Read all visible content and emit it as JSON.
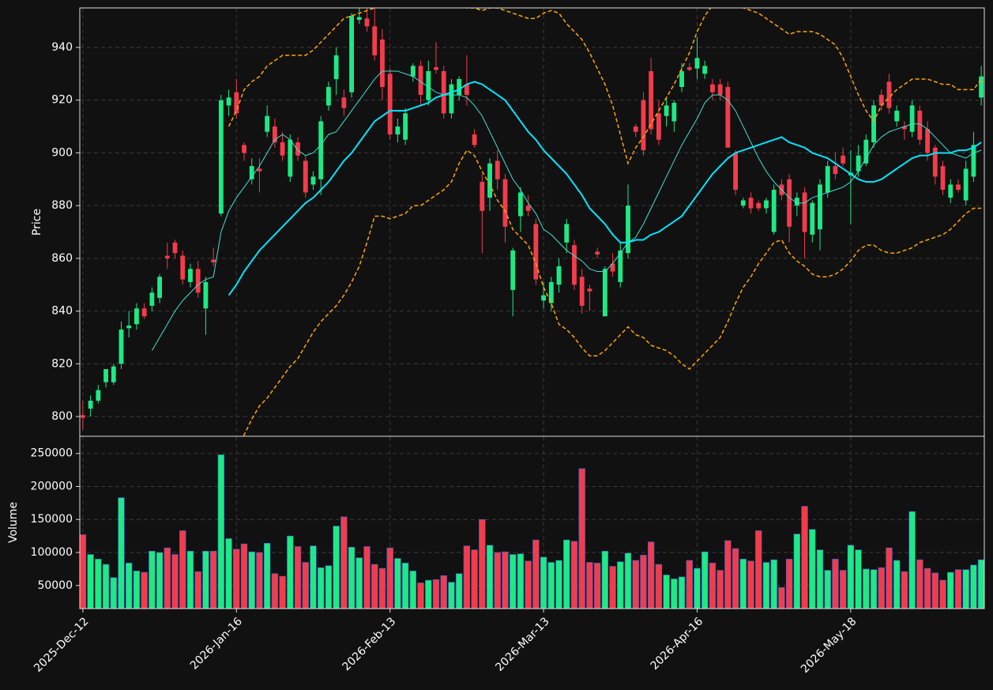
{
  "chart_data": {
    "type": "candlestick",
    "ylabel": "Price",
    "volume_ylabel": "Volume",
    "categories": [
      "2025-Dec-12",
      null,
      null,
      null,
      null,
      null,
      null,
      null,
      null,
      null,
      null,
      null,
      null,
      null,
      null,
      null,
      null,
      null,
      null,
      null,
      "2026-Jan-16",
      null,
      null,
      null,
      null,
      null,
      null,
      null,
      null,
      null,
      null,
      null,
      null,
      null,
      null,
      null,
      null,
      null,
      null,
      null,
      "2026-Feb-13",
      null,
      null,
      null,
      null,
      null,
      null,
      null,
      null,
      null,
      null,
      null,
      null,
      null,
      null,
      null,
      null,
      null,
      null,
      null,
      "2026-Mar-13",
      null,
      null,
      null,
      null,
      null,
      null,
      null,
      null,
      null,
      null,
      null,
      null,
      null,
      null,
      null,
      null,
      null,
      null,
      null,
      "2026-Apr-16",
      null,
      null,
      null,
      null,
      null,
      null,
      null,
      null,
      null,
      null,
      null,
      null,
      null,
      null,
      null,
      null,
      null,
      null,
      null,
      "2026-May-18",
      null,
      null,
      null,
      null,
      null,
      null,
      null,
      null,
      null,
      null,
      null,
      null,
      null,
      null,
      null,
      null,
      null
    ],
    "open": [
      800.5,
      803,
      806,
      813,
      813,
      820,
      833.5,
      835,
      841,
      842,
      845,
      861,
      866,
      861,
      851,
      856,
      841,
      859.5,
      877,
      918,
      923,
      903,
      890,
      894,
      908,
      910,
      904,
      891,
      904,
      897,
      888,
      890,
      918,
      928,
      921,
      923,
      950.5,
      951,
      948,
      943,
      930,
      907,
      905,
      929,
      933,
      920,
      932.5,
      931,
      915,
      922,
      926,
      907,
      889,
      883,
      897,
      890,
      848,
      876,
      880,
      873,
      844,
      843,
      850,
      866,
      865,
      853,
      848.5,
      862.5,
      838,
      858,
      851,
      862,
      910,
      920,
      931,
      915,
      914,
      912,
      925,
      932.5,
      932,
      930,
      926,
      926,
      925,
      900,
      880,
      883,
      881,
      879,
      870,
      888,
      890,
      880,
      885,
      869,
      871,
      885,
      895,
      899,
      891.5,
      893,
      896,
      904,
      922,
      927,
      912,
      910,
      908,
      916,
      909,
      902,
      895,
      883,
      888,
      882,
      891,
      921
    ],
    "high": [
      806,
      808,
      812,
      818,
      820,
      836,
      840,
      843,
      843,
      849,
      854,
      866,
      867,
      863,
      858,
      859,
      853,
      864,
      922,
      924,
      928,
      904,
      898,
      898,
      918,
      913,
      908,
      907,
      906,
      899,
      893,
      914,
      927,
      940,
      924,
      953,
      956,
      956,
      955,
      947,
      932,
      913,
      917,
      934,
      935,
      935,
      942,
      933,
      928,
      929,
      937,
      909,
      892,
      898,
      901,
      892,
      864,
      887,
      884,
      875,
      851,
      853,
      860,
      875,
      867,
      856,
      850,
      864,
      857,
      862,
      866,
      888,
      911,
      923,
      936,
      920,
      921,
      920,
      934,
      934,
      944,
      935,
      928,
      928,
      927,
      901,
      883,
      885,
      882,
      883,
      888,
      890,
      892,
      885,
      887,
      882,
      890,
      897,
      900,
      902,
      901,
      903,
      907,
      920,
      924,
      930,
      918,
      912,
      920,
      918,
      912,
      903,
      897,
      890,
      890,
      897,
      908,
      933
    ],
    "low": [
      795,
      800,
      805,
      811,
      812,
      818,
      830,
      833,
      837,
      840,
      843,
      856,
      860,
      850,
      849,
      845,
      831,
      857,
      876,
      914,
      913,
      897,
      888,
      885,
      906,
      902,
      897,
      889,
      897,
      883,
      886,
      884,
      916,
      922,
      914,
      921,
      949,
      946,
      935,
      920,
      905,
      904,
      903,
      927,
      918,
      918,
      930,
      913,
      913,
      920,
      918,
      902,
      862,
      878,
      886,
      866,
      838,
      870,
      876,
      850,
      841,
      840,
      847,
      862,
      848,
      839,
      840,
      860,
      838,
      853,
      849,
      860,
      906,
      899,
      907,
      903,
      910,
      908,
      923,
      931,
      928,
      928,
      920,
      920,
      902,
      884,
      879,
      877,
      878,
      877,
      869,
      882,
      866,
      876,
      860,
      866,
      863,
      883,
      890,
      895,
      873,
      891,
      895,
      902,
      916,
      915,
      910,
      905,
      906,
      903,
      897,
      888,
      884,
      881,
      885,
      880,
      889,
      918
    ],
    "close": [
      799.5,
      806,
      810,
      818,
      819,
      833,
      834.5,
      841,
      838,
      847,
      853,
      860,
      862,
      852,
      856,
      847,
      851,
      858.5,
      920,
      921,
      915,
      900,
      895,
      893,
      914,
      904,
      899,
      905,
      899,
      885,
      891,
      912,
      925,
      937,
      917,
      952,
      951.5,
      948,
      937,
      925,
      907,
      910,
      915,
      933,
      922,
      931,
      931.5,
      915,
      926,
      928,
      922,
      903,
      878,
      896,
      890,
      872,
      863,
      885,
      878,
      852,
      846,
      851,
      857,
      873,
      850,
      842,
      847.5,
      861.5,
      856,
      855,
      863,
      880,
      908,
      901,
      909,
      905,
      918,
      919,
      931,
      931.5,
      936,
      933,
      923,
      922,
      902,
      886,
      882,
      879,
      879,
      882,
      886,
      884,
      872,
      883,
      870,
      881,
      888,
      895,
      892,
      896,
      892.5,
      899,
      905,
      918,
      918,
      917,
      916,
      909,
      918,
      905,
      900,
      891,
      886,
      888,
      886,
      894,
      903,
      929
    ],
    "volume": [
      127000,
      97000,
      90000,
      82000,
      62000,
      183000,
      84000,
      72000,
      70000,
      102000,
      100000,
      107000,
      97000,
      133000,
      102000,
      71000,
      102000,
      102000,
      248000,
      121000,
      105000,
      113000,
      101000,
      100000,
      114000,
      68000,
      64000,
      125000,
      109000,
      85000,
      110000,
      77000,
      80000,
      140000,
      154000,
      108000,
      92000,
      109000,
      82000,
      76000,
      107000,
      91000,
      84000,
      72000,
      54000,
      58000,
      59000,
      65000,
      55000,
      68000,
      110000,
      104000,
      150000,
      111000,
      100000,
      101000,
      97000,
      98000,
      87000,
      119000,
      93000,
      85000,
      88000,
      119000,
      117000,
      227000,
      85000,
      84000,
      102000,
      79000,
      86000,
      99000,
      88000,
      96000,
      116000,
      82000,
      66000,
      60000,
      63000,
      88000,
      76000,
      101000,
      84000,
      73000,
      118000,
      106000,
      90000,
      87000,
      133000,
      85000,
      89000,
      47000,
      90000,
      128000,
      170000,
      135000,
      104000,
      73000,
      90000,
      73000,
      111000,
      104000,
      75000,
      74000,
      77000,
      107000,
      88000,
      71000,
      162000,
      89000,
      76000,
      69000,
      58000,
      70000,
      74000,
      74000,
      81000,
      89000
    ],
    "overlays": [
      {
        "color": "#00e5ff",
        "width": 2,
        "dashed": false,
        "values": [
          null,
          null,
          null,
          null,
          null,
          null,
          null,
          null,
          null,
          null,
          null,
          null,
          null,
          null,
          null,
          null,
          null,
          null,
          null,
          846,
          850,
          855,
          859,
          863,
          866,
          869,
          872,
          875,
          878,
          881,
          883,
          886,
          889,
          893,
          897,
          900,
          904,
          908,
          912,
          914,
          916,
          916,
          916,
          917,
          918,
          919,
          921,
          922,
          923,
          924,
          926,
          927,
          926,
          924,
          922,
          920,
          916,
          912,
          908,
          905,
          901,
          898,
          895,
          892,
          888,
          884,
          879,
          876,
          873,
          869,
          866,
          866,
          867,
          867,
          869,
          870,
          872,
          874,
          876,
          880,
          884,
          888,
          892,
          895,
          898,
          900,
          901,
          902,
          903,
          904,
          905,
          906,
          904,
          903,
          902,
          900,
          899,
          898,
          896,
          894,
          892,
          890,
          889,
          889,
          890,
          892,
          894,
          896,
          898,
          899,
          899,
          900,
          900,
          900,
          901,
          901,
          902,
          904
        ]
      },
      {
        "color": "#40e0d0",
        "width": 1,
        "dashed": false,
        "values": [
          null,
          null,
          null,
          null,
          null,
          null,
          null,
          null,
          null,
          825,
          830,
          835,
          840,
          844,
          847,
          850,
          852,
          853,
          870,
          878,
          883,
          887,
          891,
          895,
          900,
          905,
          907,
          905,
          901,
          899,
          900,
          903,
          907,
          908,
          912,
          916,
          920,
          924,
          928,
          931,
          931,
          931,
          930,
          929,
          927,
          925,
          923,
          922,
          922,
          922,
          921,
          918,
          914,
          908,
          902,
          896,
          890,
          886,
          881,
          877,
          871,
          869,
          866,
          863,
          861,
          859,
          856,
          855,
          855,
          858,
          862,
          866,
          868,
          873,
          879,
          885,
          891,
          897,
          903,
          908,
          913,
          919,
          922,
          922,
          920,
          916,
          910,
          904,
          898,
          893,
          889,
          886,
          883,
          881,
          881,
          883,
          884,
          885,
          886,
          887,
          889,
          893,
          898,
          903,
          906,
          908,
          909,
          910,
          911,
          911,
          909,
          906,
          903,
          900,
          899,
          898,
          900,
          901
        ]
      },
      {
        "color": "#ffa500",
        "width": 1.5,
        "dashed": true,
        "values": [
          null,
          null,
          null,
          null,
          null,
          null,
          null,
          null,
          null,
          null,
          null,
          null,
          null,
          null,
          null,
          null,
          null,
          null,
          null,
          910,
          916,
          924,
          927,
          929,
          933,
          935,
          937,
          937,
          937,
          937,
          939,
          942,
          945,
          948,
          951,
          952,
          953,
          954,
          955,
          957,
          959,
          960,
          961,
          961,
          960,
          959,
          958,
          957,
          956,
          956,
          955,
          955,
          954,
          955,
          955,
          954,
          953,
          952,
          951,
          951,
          953,
          954,
          953,
          949,
          946,
          943,
          938,
          932,
          926,
          918,
          907,
          896,
          902,
          906,
          911,
          916,
          921,
          926,
          932,
          938,
          946,
          952,
          956,
          958,
          958,
          957,
          955,
          954,
          953,
          951,
          949,
          947,
          945,
          946,
          946,
          946,
          945,
          943,
          941,
          936,
          929,
          922,
          916,
          912,
          918,
          921,
          924,
          926,
          928,
          928,
          928,
          927,
          926,
          926,
          924,
          924,
          924,
          928
        ]
      },
      {
        "color": "#ffa500",
        "width": 1.5,
        "dashed": true,
        "values": [
          null,
          null,
          null,
          null,
          null,
          null,
          null,
          null,
          null,
          null,
          null,
          null,
          null,
          null,
          null,
          null,
          null,
          null,
          null,
          782,
          788,
          793,
          799,
          804,
          807,
          811,
          815,
          819,
          822,
          827,
          832,
          836,
          839,
          842,
          846,
          851,
          857,
          866,
          876,
          876,
          875,
          876,
          877,
          880,
          880,
          882,
          884,
          886,
          889,
          896,
          901,
          899,
          893,
          888,
          882,
          878,
          871,
          868,
          865,
          858,
          849,
          843,
          835,
          833,
          830,
          826,
          823,
          823,
          825,
          828,
          831,
          834,
          831,
          830,
          827,
          826,
          825,
          823,
          820,
          818,
          821,
          824,
          827,
          830,
          836,
          843,
          849,
          853,
          858,
          862,
          866,
          867,
          862,
          859,
          857,
          854,
          853,
          853,
          854,
          856,
          859,
          863,
          865,
          865,
          863,
          862,
          862,
          863,
          864,
          866,
          867,
          868,
          869,
          871,
          874,
          877,
          879,
          879
        ]
      }
    ],
    "ylim": [
      792.5,
      955
    ],
    "yticks": [
      800,
      820,
      840,
      860,
      880,
      900,
      920,
      940
    ],
    "volume_ylim": [
      15000,
      276000
    ],
    "volume_yticks": [
      50000,
      100000,
      150000,
      200000,
      250000
    ],
    "up_color": "#1de985",
    "down_color": "#f23c4c",
    "volume_edge_color": "#3a5fcd",
    "grid": true
  }
}
